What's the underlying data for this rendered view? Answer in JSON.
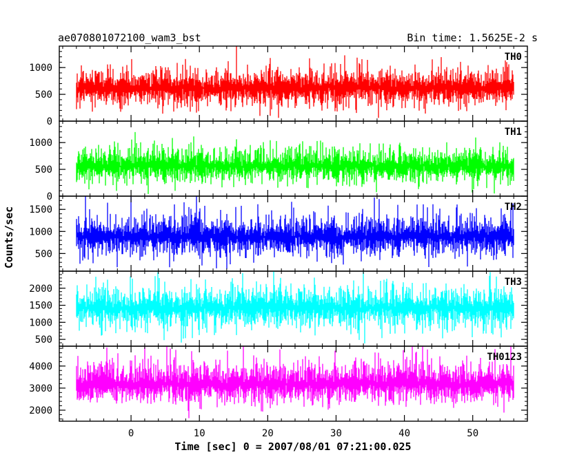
{
  "chart_data": {
    "type": "line",
    "title": "ae070801072100_wam3_bst",
    "subtitle": "Bin time: 1.5625E-2 s",
    "xlabel": "Time [sec] 0 = 2007/08/01 07:21:00.025",
    "ylabel": "Counts/sec",
    "xlim": [
      -10.5,
      58
    ],
    "x_range": [
      -8,
      56
    ],
    "bin_time": 0.015625,
    "x_ticks": [
      0,
      10,
      20,
      30,
      40,
      50
    ],
    "x_minor_step": 2,
    "grid": false,
    "panels": [
      {
        "name": "TH0",
        "color": "#ff0000",
        "ylim": [
          0,
          1400
        ],
        "y_ticks": [
          0,
          500,
          1000
        ],
        "y_minor_step": 100,
        "mean": 620,
        "noise": 175,
        "max_spike": 1400,
        "min_dip": 60
      },
      {
        "name": "TH1",
        "color": "#00ff00",
        "ylim": [
          0,
          1400
        ],
        "y_ticks": [
          0,
          500,
          1000
        ],
        "y_minor_step": 100,
        "mean": 560,
        "noise": 160,
        "max_spike": 1400,
        "min_dip": 40
      },
      {
        "name": "TH2",
        "color": "#0000ff",
        "ylim": [
          100,
          1800
        ],
        "y_ticks": [
          500,
          1000,
          1500
        ],
        "y_minor_step": 100,
        "mean": 880,
        "noise": 230,
        "max_spike": 1800,
        "min_dip": 150
      },
      {
        "name": "TH3",
        "color": "#00ffff",
        "ylim": [
          300,
          2500
        ],
        "y_ticks": [
          500,
          1000,
          1500,
          2000
        ],
        "y_minor_step": 100,
        "mean": 1420,
        "noise": 300,
        "max_spike": 2500,
        "min_dip": 380
      },
      {
        "name": "TH0123",
        "color": "#ff00ff",
        "ylim": [
          1500,
          4900
        ],
        "y_ticks": [
          2000,
          3000,
          4000
        ],
        "y_minor_step": 200,
        "mean": 3180,
        "noise": 480,
        "max_spike": 4900,
        "min_dip": 1600
      }
    ]
  }
}
